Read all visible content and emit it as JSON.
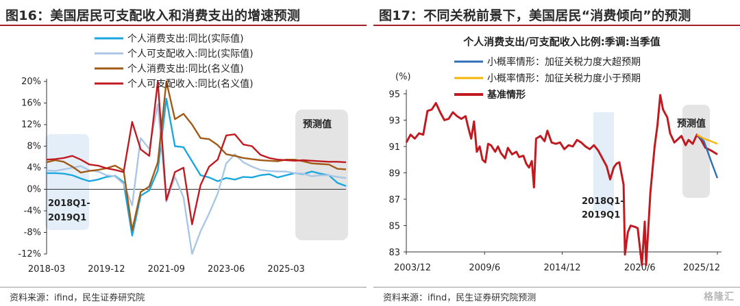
{
  "colors": {
    "title_rule": "#a31d22",
    "series_1": "#1aa7e0",
    "series_2": "#a9c6e4",
    "series_3": "#a05a16",
    "series_4": "#c01a20",
    "highlight_blue": "#e4eef9",
    "forecast_gray": "#e4e4e4",
    "rcurve_base": "#c01a20",
    "rcurve_high": "#2d6fb6",
    "rcurve_low": "#f5b400"
  },
  "left": {
    "title": "图16：美国居民可支配收入和消费支出的增速预测",
    "source": "资料来源：ifind，民生证券研究院",
    "annotation_lines": [
      "2018Q1-",
      "2019Q1"
    ],
    "forecast_label": "预测值",
    "chart_data": {
      "type": "line",
      "x_ticks": [
        "2018-03",
        "2019-12",
        "2021-09",
        "2023-06",
        "2025-03"
      ],
      "y_ticks": [
        "20%",
        "16%",
        "12%",
        "8%",
        "4%",
        "0%",
        "-4%",
        "-8%",
        "-12%"
      ],
      "ylim": [
        -12,
        20
      ],
      "x_unit": "quarter index from 2018-03",
      "xlim": [
        0,
        35
      ],
      "series": [
        {
          "name": "个人消费支出:同比(实际值)",
          "values": [
            [
              0,
              3.0
            ],
            [
              1,
              3.0
            ],
            [
              2,
              2.9
            ],
            [
              3,
              2.6
            ],
            [
              4,
              2.0
            ],
            [
              5,
              1.5
            ],
            [
              6,
              1.8
            ],
            [
              7,
              2.3
            ],
            [
              8,
              2.5
            ],
            [
              9,
              1.3
            ],
            [
              10,
              -8.6
            ],
            [
              11,
              -1.2
            ],
            [
              12,
              -0.2
            ],
            [
              13,
              3.5
            ],
            [
              14,
              16.8
            ],
            [
              15,
              8.0
            ],
            [
              16,
              7.8
            ],
            [
              17,
              5.2
            ],
            [
              18,
              2.6
            ],
            [
              19,
              2.2
            ],
            [
              20,
              1.5
            ],
            [
              21,
              2.1
            ],
            [
              22,
              1.8
            ],
            [
              23,
              2.3
            ],
            [
              24,
              2.2
            ],
            [
              25,
              2.6
            ],
            [
              26,
              2.8
            ],
            [
              27,
              2.2
            ],
            [
              28,
              2.6
            ],
            [
              29,
              3.0
            ],
            [
              30,
              2.8
            ],
            [
              31,
              3.3
            ],
            [
              32,
              2.9
            ],
            [
              33,
              2.6
            ],
            [
              34,
              1.2
            ],
            [
              35,
              0.6
            ]
          ]
        },
        {
          "name": "个人可支配收入:同比(实际值)",
          "values": [
            [
              0,
              3.5
            ],
            [
              1,
              3.4
            ],
            [
              2,
              3.7
            ],
            [
              3,
              4.0
            ],
            [
              4,
              4.3
            ],
            [
              5,
              3.5
            ],
            [
              6,
              3.3
            ],
            [
              7,
              2.6
            ],
            [
              8,
              2.4
            ],
            [
              9,
              1.0
            ],
            [
              10,
              -3.0
            ],
            [
              11,
              9.5
            ],
            [
              12,
              7.5
            ],
            [
              13,
              15.8
            ],
            [
              14,
              -2.3
            ],
            [
              15,
              2.3
            ],
            [
              16,
              -1.5
            ],
            [
              17,
              -12.0
            ],
            [
              18,
              -7.8
            ],
            [
              19,
              -4.5
            ],
            [
              20,
              -0.8
            ],
            [
              21,
              4.8
            ],
            [
              22,
              6.5
            ],
            [
              23,
              5.0
            ],
            [
              24,
              4.2
            ],
            [
              25,
              3.6
            ],
            [
              26,
              3.4
            ],
            [
              27,
              3.3
            ],
            [
              28,
              3.3
            ],
            [
              29,
              3.0
            ],
            [
              30,
              2.9
            ],
            [
              31,
              2.4
            ],
            [
              32,
              2.6
            ],
            [
              33,
              2.6
            ],
            [
              34,
              2.3
            ],
            [
              35,
              2.1
            ]
          ]
        },
        {
          "name": "个人消费支出:同比(名义值)",
          "values": [
            [
              0,
              5.0
            ],
            [
              1,
              5.4
            ],
            [
              2,
              5.1
            ],
            [
              3,
              4.2
            ],
            [
              4,
              3.1
            ],
            [
              5,
              3.4
            ],
            [
              6,
              3.6
            ],
            [
              7,
              3.9
            ],
            [
              8,
              4.4
            ],
            [
              9,
              3.5
            ],
            [
              10,
              -7.6
            ],
            [
              11,
              -0.5
            ],
            [
              12,
              0.5
            ],
            [
              13,
              5.0
            ],
            [
              14,
              20.0
            ],
            [
              15,
              13.0
            ],
            [
              16,
              14.0
            ],
            [
              17,
              12.0
            ],
            [
              18,
              9.5
            ],
            [
              19,
              9.3
            ],
            [
              20,
              8.2
            ],
            [
              21,
              6.5
            ],
            [
              22,
              6.2
            ],
            [
              23,
              5.8
            ],
            [
              24,
              5.6
            ],
            [
              25,
              5.4
            ],
            [
              26,
              5.3
            ],
            [
              27,
              5.2
            ],
            [
              28,
              5.5
            ],
            [
              29,
              5.5
            ],
            [
              30,
              5.2
            ],
            [
              31,
              4.8
            ],
            [
              32,
              4.7
            ],
            [
              33,
              4.6
            ],
            [
              34,
              3.8
            ],
            [
              35,
              3.7
            ]
          ]
        },
        {
          "name": "个人可支配收入:同比(名义值)",
          "values": [
            [
              0,
              5.5
            ],
            [
              1,
              5.6
            ],
            [
              2,
              5.8
            ],
            [
              3,
              6.2
            ],
            [
              4,
              5.5
            ],
            [
              5,
              4.6
            ],
            [
              6,
              4.4
            ],
            [
              7,
              3.9
            ],
            [
              8,
              3.6
            ],
            [
              9,
              3.2
            ],
            [
              10,
              12.5
            ],
            [
              11,
              7.4
            ],
            [
              12,
              6.2
            ],
            [
              13,
              20.0
            ],
            [
              14,
              -2.0
            ],
            [
              15,
              3.2
            ],
            [
              16,
              4.0
            ],
            [
              17,
              -6.5
            ],
            [
              18,
              0.8
            ],
            [
              19,
              4.2
            ],
            [
              20,
              5.5
            ],
            [
              21,
              10.0
            ],
            [
              22,
              10.2
            ],
            [
              23,
              8.3
            ],
            [
              24,
              8.0
            ],
            [
              25,
              6.4
            ],
            [
              26,
              5.8
            ],
            [
              27,
              5.5
            ],
            [
              28,
              5.4
            ],
            [
              29,
              5.3
            ],
            [
              30,
              5.4
            ],
            [
              31,
              5.3
            ],
            [
              32,
              5.2
            ],
            [
              33,
              5.1
            ],
            [
              34,
              5.1
            ],
            [
              35,
              5.0
            ]
          ]
        }
      ],
      "legend_placement": "top-center",
      "grid": false
    }
  },
  "right": {
    "title": "图17：不同关税前景下，美国居民“消费倾向”的预测",
    "source": "资料来源：ifind，民生证券研究院预测",
    "subtitle": "个人消费支出/可支配收入比例:季调:当季值",
    "y_unit": "(%)",
    "annotation_lines": [
      "2018Q1-",
      "2019Q1"
    ],
    "forecast_label": "预测值",
    "chart_data": {
      "type": "line",
      "x_ticks": [
        "2003/12",
        "2009/6",
        "2014/12",
        "2020/6",
        "2025/12"
      ],
      "y_ticks": [
        "95",
        "93",
        "91",
        "89",
        "87",
        "85",
        "83"
      ],
      "ylim": [
        83,
        95
      ],
      "x_unit": "year (decimal)",
      "xlim": [
        2003.9,
        2025.95
      ],
      "series": [
        {
          "name": "小概率情形：加征关税力度大超预期",
          "values": [
            [
              2024.5,
              91.9
            ],
            [
              2025.0,
              91.4
            ],
            [
              2025.5,
              89.9
            ],
            [
              2025.95,
              88.6
            ]
          ]
        },
        {
          "name": "小概率情形：加征关税力度小于预期",
          "values": [
            [
              2024.5,
              91.9
            ],
            [
              2025.0,
              91.6
            ],
            [
              2025.5,
              91.4
            ],
            [
              2025.95,
              91.2
            ]
          ]
        },
        {
          "name": "基准情形",
          "values": [
            [
              2003.9,
              91.3
            ],
            [
              2004.2,
              91.9
            ],
            [
              2004.5,
              91.6
            ],
            [
              2004.8,
              92.0
            ],
            [
              2005.1,
              91.9
            ],
            [
              2005.4,
              93.7
            ],
            [
              2005.7,
              93.8
            ],
            [
              2006.0,
              94.3
            ],
            [
              2006.3,
              93.6
            ],
            [
              2006.6,
              93.0
            ],
            [
              2006.9,
              93.1
            ],
            [
              2007.2,
              93.6
            ],
            [
              2007.5,
              93.3
            ],
            [
              2007.8,
              93.1
            ],
            [
              2008.1,
              93.3
            ],
            [
              2008.3,
              92.4
            ],
            [
              2008.5,
              91.6
            ],
            [
              2008.7,
              92.9
            ],
            [
              2008.9,
              90.6
            ],
            [
              2009.1,
              91.0
            ],
            [
              2009.3,
              90.0
            ],
            [
              2009.5,
              89.8
            ],
            [
              2009.7,
              91.2
            ],
            [
              2009.9,
              91.1
            ],
            [
              2010.2,
              90.6
            ],
            [
              2010.4,
              91.0
            ],
            [
              2010.6,
              90.5
            ],
            [
              2010.9,
              90.1
            ],
            [
              2011.1,
              90.9
            ],
            [
              2011.4,
              90.4
            ],
            [
              2011.7,
              90.6
            ],
            [
              2011.9,
              90.2
            ],
            [
              2012.2,
              90.3
            ],
            [
              2012.4,
              89.7
            ],
            [
              2012.6,
              89.4
            ],
            [
              2012.8,
              89.9
            ],
            [
              2012.95,
              87.9
            ],
            [
              2013.1,
              91.6
            ],
            [
              2013.4,
              91.8
            ],
            [
              2013.7,
              91.4
            ],
            [
              2013.9,
              92.2
            ],
            [
              2014.2,
              91.3
            ],
            [
              2014.5,
              91.2
            ],
            [
              2014.8,
              91.3
            ],
            [
              2015.1,
              90.8
            ],
            [
              2015.4,
              91.1
            ],
            [
              2015.7,
              91.0
            ],
            [
              2016.0,
              91.5
            ],
            [
              2016.3,
              91.3
            ],
            [
              2016.6,
              91.0
            ],
            [
              2016.9,
              90.8
            ],
            [
              2017.2,
              91.1
            ],
            [
              2017.5,
              90.7
            ],
            [
              2017.8,
              90.1
            ],
            [
              2018.1,
              89.5
            ],
            [
              2018.35,
              88.5
            ],
            [
              2018.6,
              89.4
            ],
            [
              2018.8,
              89.7
            ],
            [
              2019.0,
              89.8
            ],
            [
              2019.3,
              88.1
            ],
            [
              2019.4,
              82.8
            ],
            [
              2019.6,
              84.5
            ],
            [
              2019.8,
              85.0
            ],
            [
              2020.1,
              84.9
            ],
            [
              2020.3,
              84.8
            ],
            [
              2020.6,
              82.0
            ],
            [
              2020.8,
              85.3
            ],
            [
              2020.9,
              82.0
            ],
            [
              2021.2,
              87.5
            ],
            [
              2021.5,
              91.0
            ],
            [
              2021.7,
              92.6
            ],
            [
              2021.9,
              94.9
            ],
            [
              2022.1,
              93.8
            ],
            [
              2022.4,
              93.2
            ],
            [
              2022.6,
              92.0
            ],
            [
              2022.9,
              91.3
            ],
            [
              2023.1,
              91.5
            ],
            [
              2023.4,
              91.8
            ],
            [
              2023.7,
              91.1
            ],
            [
              2023.9,
              91.5
            ],
            [
              2024.2,
              91.2
            ],
            [
              2024.5,
              91.9
            ],
            [
              2024.8,
              91.5
            ],
            [
              2025.1,
              90.9
            ],
            [
              2025.5,
              90.7
            ],
            [
              2025.95,
              90.4
            ]
          ]
        }
      ],
      "legend_placement": "top-center",
      "grid": false
    }
  },
  "watermark": "格隆汇"
}
